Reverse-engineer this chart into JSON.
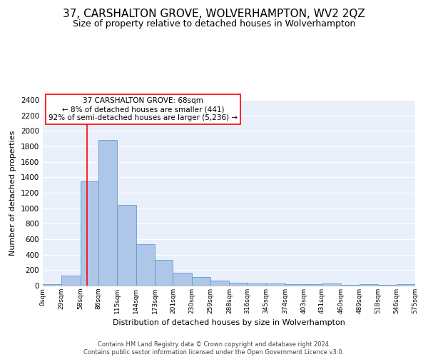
{
  "title": "37, CARSHALTON GROVE, WOLVERHAMPTON, WV2 2QZ",
  "subtitle": "Size of property relative to detached houses in Wolverhampton",
  "xlabel": "Distribution of detached houses by size in Wolverhampton",
  "ylabel": "Number of detached properties",
  "footer_line1": "Contains HM Land Registry data © Crown copyright and database right 2024.",
  "footer_line2": "Contains public sector information licensed under the Open Government Licence v3.0.",
  "annotation_line1": "37 CARSHALTON GROVE: 68sqm",
  "annotation_line2": "← 8% of detached houses are smaller (441)",
  "annotation_line3": "92% of semi-detached houses are larger (5,236) →",
  "bar_left_edges": [
    0,
    29,
    58,
    86,
    115,
    144,
    173,
    201,
    230,
    259,
    288,
    316,
    345,
    374,
    403,
    431,
    460,
    489,
    518,
    546
  ],
  "bar_widths": [
    29,
    29,
    28,
    29,
    29,
    29,
    28,
    29,
    29,
    29,
    28,
    29,
    29,
    29,
    28,
    29,
    29,
    29,
    28,
    29
  ],
  "bar_heights": [
    15,
    125,
    1350,
    1880,
    1040,
    540,
    335,
    165,
    110,
    65,
    40,
    30,
    25,
    20,
    15,
    25,
    5,
    15,
    5,
    20
  ],
  "bar_color": "#aec6e8",
  "bar_edge_color": "#5b9bd5",
  "property_line_x": 68,
  "property_line_color": "red",
  "ylim": [
    0,
    2400
  ],
  "yticks": [
    0,
    200,
    400,
    600,
    800,
    1000,
    1200,
    1400,
    1600,
    1800,
    2000,
    2200,
    2400
  ],
  "xtick_labels": [
    "0sqm",
    "29sqm",
    "58sqm",
    "86sqm",
    "115sqm",
    "144sqm",
    "173sqm",
    "201sqm",
    "230sqm",
    "259sqm",
    "288sqm",
    "316sqm",
    "345sqm",
    "374sqm",
    "403sqm",
    "431sqm",
    "460sqm",
    "489sqm",
    "518sqm",
    "546sqm",
    "575sqm"
  ],
  "background_color": "#eaf0fb",
  "grid_color": "#ffffff",
  "title_fontsize": 11,
  "subtitle_fontsize": 9,
  "xlabel_fontsize": 8,
  "ylabel_fontsize": 8,
  "annotation_fontsize": 7.5,
  "footer_fontsize": 6,
  "xtick_fontsize": 6.5,
  "ytick_fontsize": 7.5
}
